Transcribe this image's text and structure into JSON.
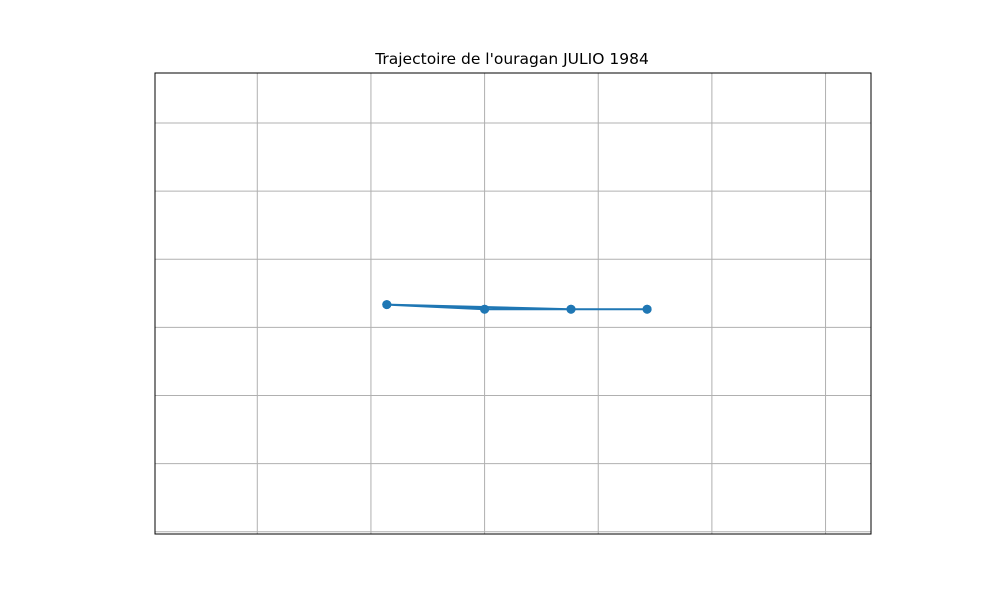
{
  "chart_data": {
    "type": "line",
    "title": "Trajectoire de l'ouragan JULIO 1984",
    "xlabel": "",
    "ylabel": "",
    "x_ticks_unlabeled": [
      -100.0,
      -99.0,
      -98.0,
      -97.0,
      -96.0,
      -95.0
    ],
    "y_ticks_unlabeled": [
      16.0,
      16.3,
      16.6,
      16.9,
      17.2,
      17.5,
      17.8
    ],
    "xlim": [
      -100.9,
      -94.6
    ],
    "ylim": [
      15.99,
      18.02
    ],
    "grid": true,
    "tick_labels_visible": false,
    "series": [
      {
        "color": "#1f77b4",
        "marker": "circle",
        "x": [
          -98.0,
          -98.86,
          -98.86,
          -97.24,
          -96.57,
          -98.0,
          -97.24,
          -96.57
        ],
        "y": [
          16.98,
          17.0,
          17.0,
          16.98,
          16.98,
          16.98,
          16.98,
          16.98
        ]
      }
    ]
  }
}
